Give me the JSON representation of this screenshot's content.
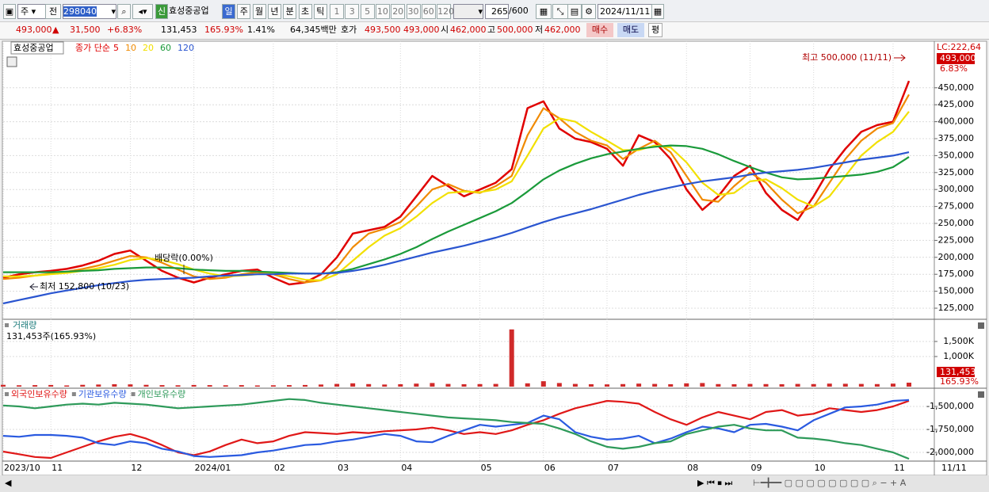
{
  "toolbar": {
    "market": "주",
    "prev": "전",
    "code": "298040",
    "badge": "신",
    "name": "효성중공업",
    "periods": [
      "일",
      "주",
      "월",
      "년",
      "분",
      "초",
      "틱"
    ],
    "intervals": [
      "1",
      "3",
      "5",
      "10",
      "20",
      "30",
      "60",
      "120"
    ],
    "count": "265",
    "max": "/600",
    "date": "2024/11/11"
  },
  "quote": {
    "price": "493,000",
    "arrow": "▲",
    "change": "31,500",
    "change_pct": "+6.83%",
    "volume": "131,453",
    "volume_ratio": "165.93%",
    "turnover": "1.41%",
    "amount": "64,345백만",
    "ask_label": "호가",
    "ask": "493,500",
    "bid": "493,000",
    "open_label": "시",
    "open": "462,000",
    "high_label": "고",
    "high": "500,000",
    "low_label": "저",
    "low": "462,000",
    "buy": "매수",
    "sell": "매도",
    "avg": "평"
  },
  "chart_data": [
    {
      "type": "line",
      "title": "효성중공업",
      "legend_prefix": "종가 단순",
      "categories": [
        "2023/10",
        null,
        null,
        "11",
        null,
        null,
        null,
        null,
        "12",
        null,
        null,
        null,
        "2024/01",
        null,
        null,
        null,
        null,
        "02",
        null,
        null,
        null,
        "03",
        null,
        null,
        null,
        "04",
        null,
        null,
        null,
        null,
        "05",
        null,
        null,
        null,
        "06",
        null,
        null,
        null,
        "07",
        null,
        null,
        null,
        null,
        "08",
        null,
        null,
        null,
        "09",
        null,
        null,
        null,
        "10",
        null,
        null,
        null,
        null,
        "11",
        null
      ],
      "cursor_label": "11/11",
      "series": [
        {
          "name": "5",
          "color": "#e00000",
          "values": [
            170000,
            175000,
            178000,
            180000,
            183000,
            188000,
            195000,
            205000,
            210000,
            195000,
            180000,
            170000,
            163000,
            170000,
            175000,
            180000,
            182000,
            170000,
            160000,
            163000,
            175000,
            200000,
            235000,
            240000,
            245000,
            260000,
            290000,
            320000,
            305000,
            290000,
            300000,
            310000,
            330000,
            420000,
            430000,
            390000,
            375000,
            370000,
            360000,
            335000,
            380000,
            370000,
            345000,
            300000,
            270000,
            290000,
            320000,
            335000,
            295000,
            270000,
            255000,
            290000,
            330000,
            360000,
            385000,
            395000,
            400000,
            460000
          ]
        },
        {
          "name": "10",
          "color": "#f08a00",
          "values": [
            168000,
            170000,
            173000,
            176000,
            179000,
            183000,
            188000,
            195000,
            202000,
            200000,
            192000,
            182000,
            172000,
            168000,
            170000,
            175000,
            178000,
            175000,
            168000,
            163000,
            166000,
            185000,
            215000,
            235000,
            242000,
            252000,
            275000,
            300000,
            308000,
            298000,
            295000,
            305000,
            320000,
            380000,
            420000,
            405000,
            385000,
            372000,
            365000,
            345000,
            360000,
            372000,
            355000,
            320000,
            285000,
            282000,
            305000,
            325000,
            310000,
            285000,
            265000,
            275000,
            310000,
            345000,
            372000,
            390000,
            398000,
            440000
          ]
        },
        {
          "name": "20",
          "color": "#f2e000",
          "values": [
            172000,
            172000,
            173000,
            175000,
            177000,
            180000,
            184000,
            189000,
            196000,
            199000,
            196000,
            190000,
            182000,
            176000,
            172000,
            173000,
            175000,
            176000,
            172000,
            167000,
            166000,
            175000,
            195000,
            215000,
            232000,
            243000,
            260000,
            280000,
            295000,
            297000,
            296000,
            300000,
            312000,
            350000,
            390000,
            405000,
            400000,
            385000,
            372000,
            358000,
            358000,
            365000,
            362000,
            340000,
            310000,
            292000,
            295000,
            312000,
            315000,
            302000,
            285000,
            275000,
            290000,
            320000,
            350000,
            370000,
            385000,
            415000
          ]
        },
        {
          "name": "60",
          "color": "#1a9a3a",
          "values": [
            178000,
            178000,
            178000,
            178000,
            179000,
            180000,
            181000,
            183000,
            184000,
            185000,
            185000,
            184000,
            182000,
            181000,
            180000,
            180000,
            179000,
            178000,
            177000,
            176000,
            176000,
            178000,
            183000,
            190000,
            197000,
            205000,
            215000,
            227000,
            238000,
            248000,
            258000,
            268000,
            280000,
            297000,
            315000,
            328000,
            338000,
            346000,
            352000,
            356000,
            360000,
            363000,
            365000,
            364000,
            360000,
            352000,
            342000,
            333000,
            325000,
            318000,
            315000,
            316000,
            318000,
            320000,
            322000,
            326000,
            333000,
            348000
          ]
        },
        {
          "name": "120",
          "color": "#2a55d0",
          "values": [
            132000,
            137000,
            142000,
            147000,
            151000,
            155000,
            159000,
            162000,
            165000,
            167000,
            168000,
            169000,
            170000,
            172000,
            173000,
            174000,
            175000,
            175000,
            176000,
            176000,
            176000,
            177000,
            180000,
            184000,
            189000,
            195000,
            201000,
            207000,
            212000,
            217000,
            223000,
            229000,
            236000,
            244000,
            252000,
            259000,
            265000,
            271000,
            278000,
            285000,
            292000,
            298000,
            303000,
            308000,
            312000,
            315000,
            318000,
            322000,
            325000,
            327000,
            329000,
            332000,
            336000,
            340000,
            344000,
            347000,
            350000,
            355000
          ]
        }
      ],
      "ylim": [
        108650,
        507000
      ],
      "yticks": [
        {
          "value": 125000,
          "label": "125,000"
        },
        {
          "value": 150000,
          "label": "150,000"
        },
        {
          "value": 175000,
          "label": "175,000"
        },
        {
          "value": 200000,
          "label": "200,000"
        },
        {
          "value": 225000,
          "label": "225,000"
        },
        {
          "value": 250000,
          "label": "250,000"
        },
        {
          "value": 275000,
          "label": "275,000"
        },
        {
          "value": 300000,
          "label": "300,000"
        },
        {
          "value": 325000,
          "label": "325,000"
        },
        {
          "value": 350000,
          "label": "350,000"
        },
        {
          "value": 375000,
          "label": "375,000"
        },
        {
          "value": 400000,
          "label": "400,000"
        },
        {
          "value": 425000,
          "label": "425,000"
        },
        {
          "value": 450000,
          "label": "450,000"
        }
      ],
      "grid": true,
      "lc_label": "LC:222,64",
      "last_price": {
        "value": 493000,
        "label": "493,000"
      },
      "last_change": "6.83%",
      "annotations": {
        "high": "최고 500,000 (11/11)",
        "low": "최저 152,800 (10/23)",
        "ex_dividend": "배당락(0.00%)"
      }
    },
    {
      "type": "bar",
      "title": "거래량",
      "subtitle": "131,453주(165.93%)",
      "color": "#d02a2a",
      "values": [
        60000,
        45000,
        50000,
        55000,
        40000,
        60000,
        70000,
        80000,
        75000,
        60000,
        50000,
        45000,
        55000,
        50000,
        45000,
        50000,
        40000,
        45000,
        50000,
        55000,
        70000,
        90000,
        110000,
        85000,
        70000,
        80000,
        100000,
        120000,
        90000,
        80000,
        85000,
        90000,
        1900000,
        110000,
        180000,
        120000,
        90000,
        80000,
        75000,
        85000,
        100000,
        90000,
        80000,
        110000,
        120000,
        85000,
        80000,
        90000,
        85000,
        80000,
        90000,
        85000,
        100000,
        95000,
        90000,
        85000,
        100000,
        131453
      ],
      "ylim": [
        0,
        2184000
      ],
      "yticks": [
        {
          "value": 1000000,
          "label": "1,000K"
        },
        {
          "value": 1500000,
          "label": "1,500K"
        }
      ],
      "side_labels": [
        "131,453",
        "165.93%"
      ]
    },
    {
      "type": "line",
      "series": [
        {
          "name": "외국인보유수량",
          "color": "#e01818",
          "values": [
            -1991000,
            -2020000,
            -2050000,
            -2060000,
            -2000000,
            -1940000,
            -1880000,
            -1830000,
            -1800000,
            -1850000,
            -1920000,
            -2000000,
            -2030000,
            -1990000,
            -1920000,
            -1860000,
            -1900000,
            -1880000,
            -1820000,
            -1780000,
            -1790000,
            -1800000,
            -1780000,
            -1790000,
            -1770000,
            -1760000,
            -1750000,
            -1730000,
            -1760000,
            -1800000,
            -1780000,
            -1800000,
            -1760000,
            -1700000,
            -1650000,
            -1580000,
            -1520000,
            -1480000,
            -1440000,
            -1450000,
            -1470000,
            -1560000,
            -1640000,
            -1700000,
            -1620000,
            -1560000,
            -1600000,
            -1640000,
            -1560000,
            -1540000,
            -1600000,
            -1580000,
            -1520000,
            -1540000,
            -1560000,
            -1540000,
            -1500000,
            -1440000
          ]
        },
        {
          "name": "기관보유수량",
          "color": "#2a5ae0",
          "values": [
            -1820000,
            -1830000,
            -1810000,
            -1810000,
            -1820000,
            -1840000,
            -1900000,
            -1920000,
            -1880000,
            -1900000,
            -1960000,
            -1990000,
            -2040000,
            -2050000,
            -2040000,
            -2030000,
            -2000000,
            -1980000,
            -1950000,
            -1920000,
            -1910000,
            -1880000,
            -1860000,
            -1830000,
            -1800000,
            -1820000,
            -1880000,
            -1890000,
            -1820000,
            -1760000,
            -1700000,
            -1720000,
            -1700000,
            -1680000,
            -1600000,
            -1640000,
            -1780000,
            -1830000,
            -1860000,
            -1850000,
            -1820000,
            -1900000,
            -1850000,
            -1780000,
            -1720000,
            -1740000,
            -1780000,
            -1700000,
            -1690000,
            -1720000,
            -1760000,
            -1650000,
            -1580000,
            -1510000,
            -1500000,
            -1480000,
            -1440000,
            -1430000
          ]
        },
        {
          "name": "개인보유수량",
          "color": "#2e9a5a",
          "values": [
            -1490000,
            -1500000,
            -1520000,
            -1500000,
            -1480000,
            -1470000,
            -1480000,
            -1460000,
            -1470000,
            -1480000,
            -1500000,
            -1520000,
            -1510000,
            -1500000,
            -1490000,
            -1480000,
            -1460000,
            -1440000,
            -1420000,
            -1430000,
            -1460000,
            -1480000,
            -1500000,
            -1520000,
            -1540000,
            -1560000,
            -1580000,
            -1600000,
            -1620000,
            -1630000,
            -1640000,
            -1650000,
            -1670000,
            -1680000,
            -1690000,
            -1740000,
            -1800000,
            -1880000,
            -1940000,
            -1960000,
            -1940000,
            -1900000,
            -1880000,
            -1800000,
            -1760000,
            -1720000,
            -1700000,
            -1740000,
            -1760000,
            -1760000,
            -1840000,
            -1850000,
            -1870000,
            -1900000,
            -1920000,
            -1960000,
            -2000000,
            -2070000
          ]
        }
      ],
      "ylim": [
        -2094800,
        -1319000
      ],
      "yticks": [
        {
          "value": -2000000,
          "label": "-2,000,000"
        },
        {
          "value": -1750000,
          "label": "-1,750,000"
        },
        {
          "value": -1500000,
          "label": "-1,500,000"
        }
      ]
    }
  ]
}
